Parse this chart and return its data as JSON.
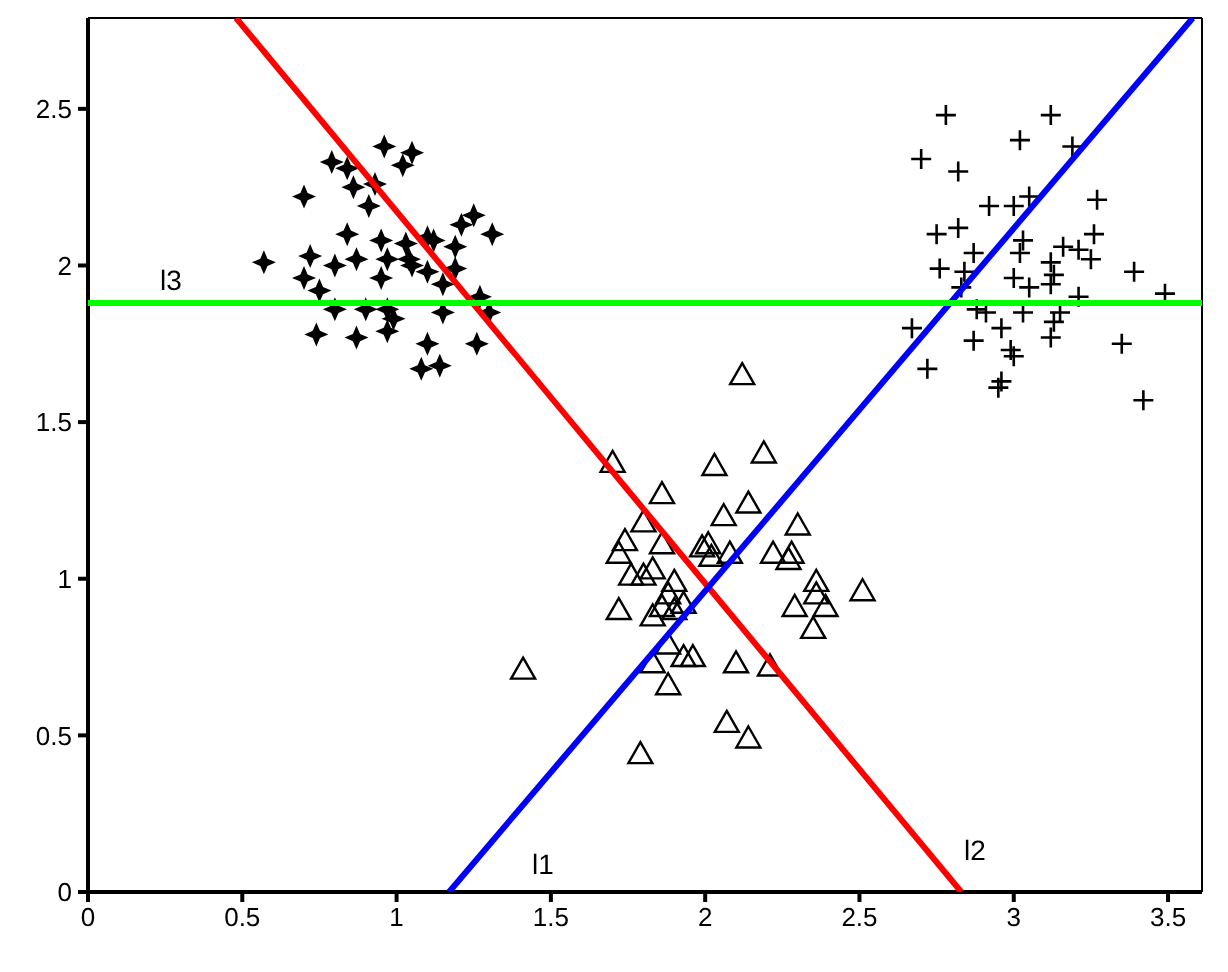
{
  "chart_data": {
    "type": "scatter",
    "xlim": [
      0,
      3.61
    ],
    "ylim": [
      0,
      2.79
    ],
    "xticks": [
      0,
      0.5,
      1,
      1.5,
      2,
      2.5,
      3,
      3.5
    ],
    "yticks": [
      0,
      0.5,
      1,
      1.5,
      2,
      2.5
    ],
    "grid": false,
    "legend": false,
    "annotations": [
      "l1",
      "l2",
      "l3"
    ],
    "series": [
      {
        "marker": "star",
        "color": "#000000",
        "x": [
          0.96,
          1.05,
          1.02,
          0.79,
          0.84,
          0.86,
          0.93,
          0.91,
          0.7,
          1.25,
          1.21,
          1.31,
          1.1,
          0.84,
          0.95,
          1.03,
          1.19,
          0.57,
          0.72,
          0.8,
          0.87,
          0.97,
          1.05,
          1.1,
          1.19,
          0.7,
          0.75,
          0.95,
          1.15,
          0.8,
          0.9,
          0.97,
          1.27,
          1.3,
          1.15,
          0.99,
          0.74,
          0.87,
          0.97,
          1.1,
          1.26,
          1.08,
          1.14,
          1.04,
          1.12
        ],
        "values": [
          2.38,
          2.36,
          2.32,
          2.33,
          2.31,
          2.25,
          2.26,
          2.19,
          2.22,
          2.16,
          2.13,
          2.1,
          2.09,
          2.1,
          2.08,
          2.07,
          2.06,
          2.01,
          2.03,
          2.0,
          2.02,
          2.02,
          2.0,
          1.98,
          1.99,
          1.96,
          1.92,
          1.96,
          1.94,
          1.86,
          1.86,
          1.86,
          1.9,
          1.85,
          1.85,
          1.83,
          1.78,
          1.77,
          1.79,
          1.75,
          1.75,
          1.67,
          1.68,
          2.02,
          2.08
        ]
      },
      {
        "marker": "cross",
        "color": "#000000",
        "x": [
          2.78,
          3.12,
          3.02,
          3.19,
          2.7,
          2.82,
          3.27,
          2.92,
          3.0,
          3.05,
          2.75,
          2.82,
          3.26,
          3.03,
          3.02,
          3.16,
          3.21,
          2.87,
          3.25,
          2.76,
          2.84,
          3.12,
          3.13,
          3.0,
          3.05,
          3.12,
          3.39,
          2.83,
          3.49,
          3.21,
          2.88,
          2.91,
          3.03,
          2.67,
          2.96,
          3.15,
          3.13,
          2.87,
          3.12,
          2.99,
          3.0,
          3.35,
          2.72,
          2.96,
          2.95,
          3.42
        ],
        "values": [
          2.48,
          2.48,
          2.4,
          2.38,
          2.34,
          2.3,
          2.21,
          2.19,
          2.19,
          2.22,
          2.1,
          2.12,
          2.1,
          2.08,
          2.04,
          2.06,
          2.05,
          2.04,
          2.02,
          1.99,
          1.98,
          2.01,
          1.97,
          1.96,
          1.93,
          1.94,
          1.98,
          1.93,
          1.91,
          1.9,
          1.86,
          1.85,
          1.85,
          1.8,
          1.8,
          1.85,
          1.82,
          1.76,
          1.77,
          1.73,
          1.71,
          1.75,
          1.67,
          1.63,
          1.61,
          1.57
        ]
      },
      {
        "marker": "triangle",
        "color": "#000000",
        "x": [
          2.12,
          1.7,
          2.03,
          2.19,
          1.86,
          2.14,
          2.06,
          2.3,
          1.8,
          1.74,
          1.72,
          1.86,
          1.99,
          2.02,
          2.08,
          2.22,
          2.28,
          2.27,
          1.83,
          1.76,
          1.8,
          1.9,
          2.36,
          2.51,
          2.36,
          1.88,
          1.93,
          2.29,
          2.39,
          1.72,
          1.83,
          1.86,
          2.35,
          1.9,
          1.88,
          1.93,
          1.96,
          1.83,
          2.1,
          2.21,
          1.41,
          1.88,
          2.07,
          2.14,
          1.79,
          2.01
        ],
        "values": [
          1.65,
          1.37,
          1.36,
          1.4,
          1.27,
          1.24,
          1.2,
          1.17,
          1.18,
          1.12,
          1.08,
          1.11,
          1.1,
          1.07,
          1.08,
          1.08,
          1.08,
          1.06,
          1.03,
          1.01,
          1.01,
          0.99,
          0.99,
          0.96,
          0.95,
          0.95,
          0.92,
          0.91,
          0.91,
          0.9,
          0.88,
          0.91,
          0.84,
          0.9,
          0.79,
          0.75,
          0.75,
          0.73,
          0.73,
          0.72,
          0.71,
          0.66,
          0.54,
          0.49,
          0.44,
          1.11
        ]
      },
      {
        "type": "line",
        "color": "#ff0000",
        "x": [
          0.48,
          2.83
        ],
        "values": [
          2.79,
          0
        ]
      },
      {
        "type": "line",
        "color": "#0000ff",
        "x": [
          1.17,
          3.58
        ],
        "values": [
          0,
          2.79
        ]
      },
      {
        "type": "line",
        "color": "#00ff00",
        "x": [
          0,
          3.61
        ],
        "values": [
          1.88,
          1.88
        ]
      }
    ]
  }
}
